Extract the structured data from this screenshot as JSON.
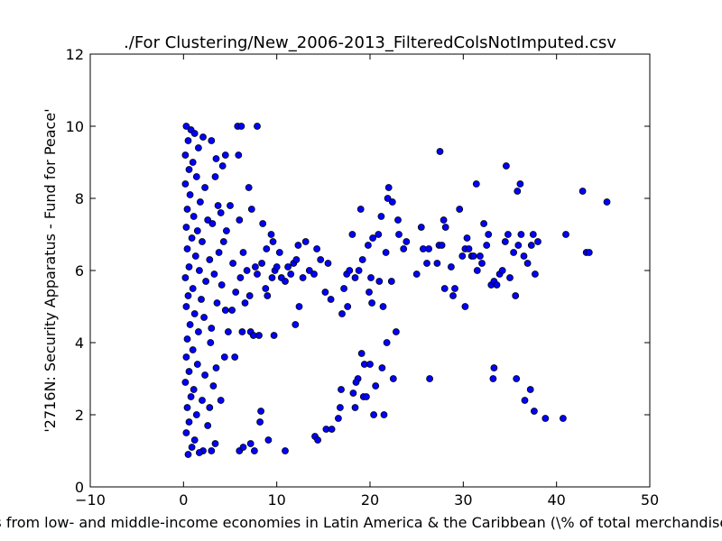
{
  "chart_data": {
    "type": "scatter",
    "title": "./For Clustering/New_2006-2013_FilteredColsNotImputed.csv",
    "xlabel": "Imports from low- and middle-income economies in Latin America & the Caribbean  (\\% of total merchandise imports)",
    "ylabel": "'2716N: Security Apparatus - Fund for Peace'",
    "xlim": [
      -10,
      50
    ],
    "ylim": [
      0,
      12
    ],
    "xticks": [
      -10,
      0,
      10,
      20,
      30,
      40,
      50
    ],
    "yticks": [
      0,
      2,
      4,
      6,
      8,
      10,
      12
    ],
    "grid": false,
    "marker_color": "#0000ff",
    "series": [
      {
        "name": "points",
        "points": [
          [
            0.3,
            10
          ],
          [
            0.8,
            9.9
          ],
          [
            1.2,
            9.8
          ],
          [
            0.5,
            9.6
          ],
          [
            1.6,
            9.4
          ],
          [
            0.2,
            9.2
          ],
          [
            2.1,
            9.7
          ],
          [
            1.0,
            9.0
          ],
          [
            0.6,
            8.8
          ],
          [
            1.4,
            8.6
          ],
          [
            0.2,
            8.4
          ],
          [
            2.3,
            8.3
          ],
          [
            0.7,
            8.1
          ],
          [
            1.8,
            7.9
          ],
          [
            0.4,
            7.7
          ],
          [
            1.1,
            7.5
          ],
          [
            2.6,
            7.4
          ],
          [
            0.3,
            7.2
          ],
          [
            1.5,
            7.1
          ],
          [
            0.9,
            6.9
          ],
          [
            2.0,
            6.8
          ],
          [
            0.4,
            6.6
          ],
          [
            1.3,
            6.4
          ],
          [
            2.8,
            6.3
          ],
          [
            0.6,
            6.1
          ],
          [
            1.7,
            6.0
          ],
          [
            0.2,
            5.8
          ],
          [
            2.4,
            5.7
          ],
          [
            1.0,
            5.5
          ],
          [
            0.5,
            5.3
          ],
          [
            1.9,
            5.2
          ],
          [
            0.3,
            5.0
          ],
          [
            1.2,
            4.8
          ],
          [
            2.2,
            4.7
          ],
          [
            0.7,
            4.5
          ],
          [
            1.6,
            4.3
          ],
          [
            0.4,
            4.1
          ],
          [
            2.9,
            4.0
          ],
          [
            1.0,
            3.8
          ],
          [
            0.3,
            3.6
          ],
          [
            1.5,
            3.4
          ],
          [
            0.6,
            3.2
          ],
          [
            2.3,
            3.1
          ],
          [
            0.2,
            2.9
          ],
          [
            1.1,
            2.7
          ],
          [
            0.8,
            2.5
          ],
          [
            2.0,
            2.4
          ],
          [
            0.4,
            2.2
          ],
          [
            1.4,
            2.0
          ],
          [
            0.6,
            1.8
          ],
          [
            2.6,
            1.7
          ],
          [
            0.3,
            1.5
          ],
          [
            1.2,
            1.3
          ],
          [
            0.9,
            1.1
          ],
          [
            2.1,
            1.0
          ],
          [
            0.5,
            0.9
          ],
          [
            1.7,
            0.95
          ],
          [
            3.0,
            1.0
          ],
          [
            3.4,
            1.2
          ],
          [
            2.8,
            2.2
          ],
          [
            3.2,
            2.8
          ],
          [
            3.5,
            3.3
          ],
          [
            3.0,
            4.4
          ],
          [
            3.6,
            5.1
          ],
          [
            3.3,
            5.9
          ],
          [
            3.8,
            6.5
          ],
          [
            3.1,
            7.3
          ],
          [
            3.7,
            7.8
          ],
          [
            3.4,
            8.6
          ],
          [
            3.0,
            9.6
          ],
          [
            3.5,
            9.1
          ],
          [
            4.0,
            7.6
          ],
          [
            4.3,
            6.8
          ],
          [
            4.1,
            5.6
          ],
          [
            4.5,
            4.9
          ],
          [
            4.8,
            4.3
          ],
          [
            4.4,
            3.6
          ],
          [
            4.0,
            2.4
          ],
          [
            4.6,
            7.1
          ],
          [
            4.2,
            8.9
          ],
          [
            4.5,
            9.2
          ],
          [
            5.0,
            7.8
          ],
          [
            5.3,
            6.2
          ],
          [
            5.6,
            5.4
          ],
          [
            5.2,
            4.9
          ],
          [
            5.5,
            3.6
          ],
          [
            5.8,
            10.0
          ],
          [
            6.2,
            10.0
          ],
          [
            5.9,
            9.2
          ],
          [
            6.0,
            7.4
          ],
          [
            6.4,
            6.5
          ],
          [
            6.1,
            5.8
          ],
          [
            6.6,
            5.1
          ],
          [
            6.3,
            4.3
          ],
          [
            6.0,
            1.0
          ],
          [
            6.4,
            1.1
          ],
          [
            6.8,
            6.0
          ],
          [
            7.1,
            5.3
          ],
          [
            7.0,
            8.3
          ],
          [
            7.3,
            7.7
          ],
          [
            7.2,
            4.3
          ],
          [
            7.5,
            4.2
          ],
          [
            7.9,
            10.0
          ],
          [
            7.7,
            6.1
          ],
          [
            7.9,
            5.9
          ],
          [
            8.1,
            4.2
          ],
          [
            7.2,
            1.2
          ],
          [
            7.6,
            1.0
          ],
          [
            8.3,
            2.1
          ],
          [
            8.2,
            1.8
          ],
          [
            8.5,
            7.3
          ],
          [
            8.4,
            6.2
          ],
          [
            8.8,
            5.5
          ],
          [
            9.0,
            5.3
          ],
          [
            8.9,
            6.6
          ],
          [
            9.1,
            1.3
          ],
          [
            9.4,
            7.0
          ],
          [
            9.6,
            6.8
          ],
          [
            9.8,
            6.0
          ],
          [
            9.5,
            5.8
          ],
          [
            9.7,
            4.2
          ],
          [
            10.0,
            6.1
          ],
          [
            10.3,
            6.5
          ],
          [
            10.5,
            5.8
          ],
          [
            10.9,
            5.7
          ],
          [
            11.2,
            6.1
          ],
          [
            11.5,
            5.9
          ],
          [
            11.8,
            6.2
          ],
          [
            12.1,
            6.3
          ],
          [
            12.3,
            6.7
          ],
          [
            12.0,
            4.5
          ],
          [
            12.4,
            5.0
          ],
          [
            12.8,
            5.8
          ],
          [
            13.1,
            6.8
          ],
          [
            13.5,
            6.0
          ],
          [
            14.0,
            5.9
          ],
          [
            14.3,
            6.6
          ],
          [
            14.7,
            6.3
          ],
          [
            14.1,
            1.4
          ],
          [
            14.4,
            1.3
          ],
          [
            15.2,
            5.4
          ],
          [
            15.5,
            6.2
          ],
          [
            15.8,
            5.2
          ],
          [
            15.3,
            1.6
          ],
          [
            15.9,
            1.6
          ],
          [
            16.6,
            1.9
          ],
          [
            16.8,
            2.2
          ],
          [
            16.9,
            2.7
          ],
          [
            17.2,
            5.5
          ],
          [
            17.0,
            4.8
          ],
          [
            17.5,
            5.9
          ],
          [
            17.8,
            6.0
          ],
          [
            17.6,
            5.0
          ],
          [
            18.1,
            7.0
          ],
          [
            18.4,
            5.8
          ],
          [
            18.2,
            2.6
          ],
          [
            18.4,
            2.2
          ],
          [
            18.7,
            3.0
          ],
          [
            18.5,
            2.9
          ],
          [
            19.0,
            7.7
          ],
          [
            18.8,
            6.0
          ],
          [
            19.2,
            6.3
          ],
          [
            19.1,
            3.7
          ],
          [
            19.4,
            3.4
          ],
          [
            19.3,
            2.5
          ],
          [
            19.6,
            2.5
          ],
          [
            19.8,
            6.7
          ],
          [
            19.9,
            5.4
          ],
          [
            20.1,
            5.8
          ],
          [
            20.3,
            6.9
          ],
          [
            20.2,
            5.1
          ],
          [
            20.0,
            3.4
          ],
          [
            20.4,
            2.0
          ],
          [
            20.6,
            2.8
          ],
          [
            20.9,
            7.0
          ],
          [
            21.2,
            7.5
          ],
          [
            21.0,
            5.7
          ],
          [
            21.4,
            5.0
          ],
          [
            21.3,
            3.3
          ],
          [
            21.5,
            2.0
          ],
          [
            21.7,
            6.5
          ],
          [
            21.9,
            8.0
          ],
          [
            22.0,
            8.3
          ],
          [
            22.3,
            5.7
          ],
          [
            21.8,
            4.0
          ],
          [
            22.5,
            3.0
          ],
          [
            22.8,
            4.3
          ],
          [
            23.0,
            7.4
          ],
          [
            23.1,
            7.0
          ],
          [
            23.6,
            6.6
          ],
          [
            23.9,
            6.8
          ],
          [
            25.0,
            5.9
          ],
          [
            25.5,
            7.2
          ],
          [
            25.7,
            6.6
          ],
          [
            26.1,
            6.2
          ],
          [
            26.4,
            3.0
          ],
          [
            27.2,
            6.2
          ],
          [
            27.5,
            9.3
          ],
          [
            27.4,
            6.7
          ],
          [
            27.7,
            6.7
          ],
          [
            27.9,
            7.4
          ],
          [
            28.1,
            7.2
          ],
          [
            28.0,
            5.5
          ],
          [
            28.7,
            6.1
          ],
          [
            28.9,
            5.3
          ],
          [
            29.1,
            5.5
          ],
          [
            29.6,
            7.7
          ],
          [
            29.9,
            6.4
          ],
          [
            30.2,
            6.6
          ],
          [
            30.4,
            6.9
          ],
          [
            30.6,
            6.6
          ],
          [
            30.2,
            5.0
          ],
          [
            30.9,
            6.4
          ],
          [
            31.1,
            6.4
          ],
          [
            31.4,
            8.4
          ],
          [
            31.5,
            6.0
          ],
          [
            31.8,
            6.4
          ],
          [
            32.0,
            6.2
          ],
          [
            32.2,
            7.3
          ],
          [
            32.5,
            6.7
          ],
          [
            32.7,
            7.0
          ],
          [
            33.0,
            5.6
          ],
          [
            33.3,
            5.7
          ],
          [
            33.6,
            5.6
          ],
          [
            33.9,
            5.9
          ],
          [
            34.2,
            6.0
          ],
          [
            34.5,
            6.8
          ],
          [
            34.8,
            7.0
          ],
          [
            35.0,
            5.8
          ],
          [
            34.6,
            8.9
          ],
          [
            35.4,
            6.5
          ],
          [
            35.6,
            5.3
          ],
          [
            35.9,
            6.7
          ],
          [
            36.2,
            7.0
          ],
          [
            35.8,
            8.2
          ],
          [
            36.1,
            8.4
          ],
          [
            36.5,
            6.4
          ],
          [
            36.9,
            6.2
          ],
          [
            37.3,
            6.7
          ],
          [
            37.5,
            7.0
          ],
          [
            37.7,
            5.9
          ],
          [
            38.0,
            6.8
          ],
          [
            33.3,
            3.3
          ],
          [
            33.2,
            3.0
          ],
          [
            35.7,
            3.0
          ],
          [
            36.6,
            2.4
          ],
          [
            37.2,
            2.7
          ],
          [
            37.6,
            2.1
          ],
          [
            38.8,
            1.9
          ],
          [
            40.7,
            1.9
          ],
          [
            41.0,
            7.0
          ],
          [
            42.8,
            8.2
          ],
          [
            43.2,
            6.5
          ],
          [
            43.5,
            6.5
          ],
          [
            45.4,
            7.9
          ],
          [
            10.9,
            1.0
          ],
          [
            26.3,
            6.6
          ],
          [
            22.4,
            7.9
          ]
        ]
      }
    ]
  }
}
